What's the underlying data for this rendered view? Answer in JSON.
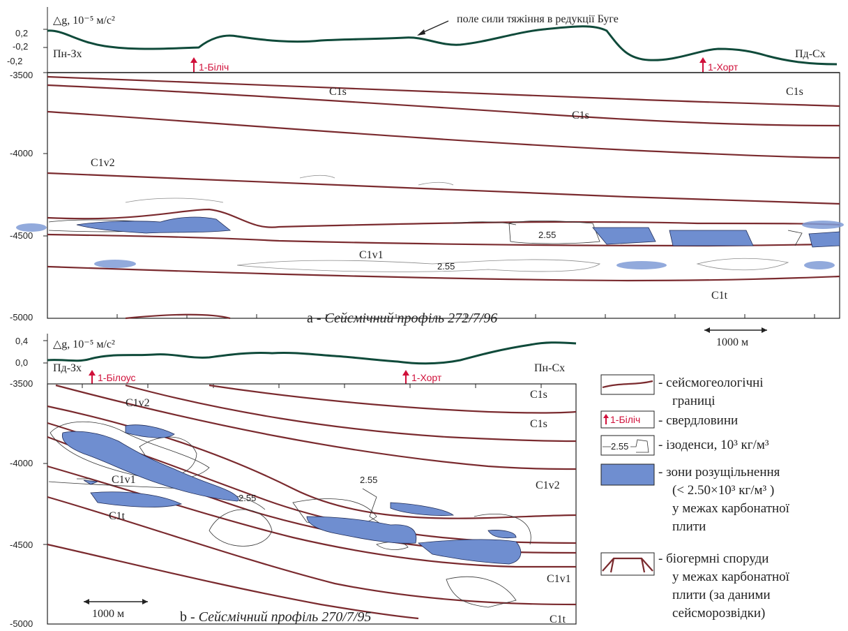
{
  "top": {
    "gravity_axis_label": "△g, 10⁻⁵ м/с²",
    "gravity_ticks": [
      "0,2",
      "-0,2",
      "-0,2"
    ],
    "gravity_caption": "поле сили тяжіння в редукції Буге",
    "left_direction": "Пн-Зх",
    "right_direction": "Пд-Сх",
    "wells": [
      "1-Біліч",
      "1-Хорт"
    ],
    "depth_ticks": [
      "-3500",
      "-4000",
      "-4500",
      "-5000"
    ],
    "layer_labels": [
      "C1s",
      "C1s",
      "C1s",
      "C1v2",
      "C1v1",
      "C1t"
    ],
    "isodensity_labels": [
      "2.55",
      "2.55"
    ],
    "title_prefix": "a - ",
    "title_italic": "Сейсмічний профіль 272/7/96",
    "scale_label": "1000 м"
  },
  "bottom": {
    "gravity_axis_label": "△g, 10⁻⁵ м/с²",
    "gravity_ticks": [
      "0,4",
      "0,0"
    ],
    "left_direction": "Пд-Зх",
    "right_direction": "Пн-Сх",
    "wells": [
      "1-Білоус",
      "1-Хорт"
    ],
    "depth_ticks": [
      "-3500",
      "-4000",
      "-4500",
      "-5000"
    ],
    "layer_labels": [
      "C1v2",
      "C1s",
      "C1s",
      "C1v1",
      "C1v2",
      "C1t",
      "C1v1",
      "C1t"
    ],
    "isodensity_labels": [
      "2.55",
      "2.55"
    ],
    "title_prefix": "b - ",
    "title_italic": "Сейсмічний профіль 270/7/95",
    "scale_label": "1000 м"
  },
  "legend": {
    "items": [
      {
        "lines": [
          "- сейсмогеологічні",
          "границі"
        ]
      },
      {
        "well_sample": "1-Біліч",
        "lines": [
          "- свердловини"
        ]
      },
      {
        "iso_sample": "2.55",
        "lines": [
          "- ізоденси, 10³ кг/м³"
        ]
      },
      {
        "lines": [
          "- зони розущільнення",
          "(< 2.50×10³ кг/м³ )",
          "у межах карбонатної",
          "плити"
        ]
      },
      {
        "lines": [
          "- біогермні споруди",
          "у межах карбонатної",
          "плити (за даними",
          "сейсморозвідки)"
        ]
      }
    ]
  },
  "colors": {
    "boundary": "#7a2a2e",
    "gravity": "#0f4a3a",
    "zone_fill": "#6f8ed0",
    "well": "#d0103a"
  }
}
